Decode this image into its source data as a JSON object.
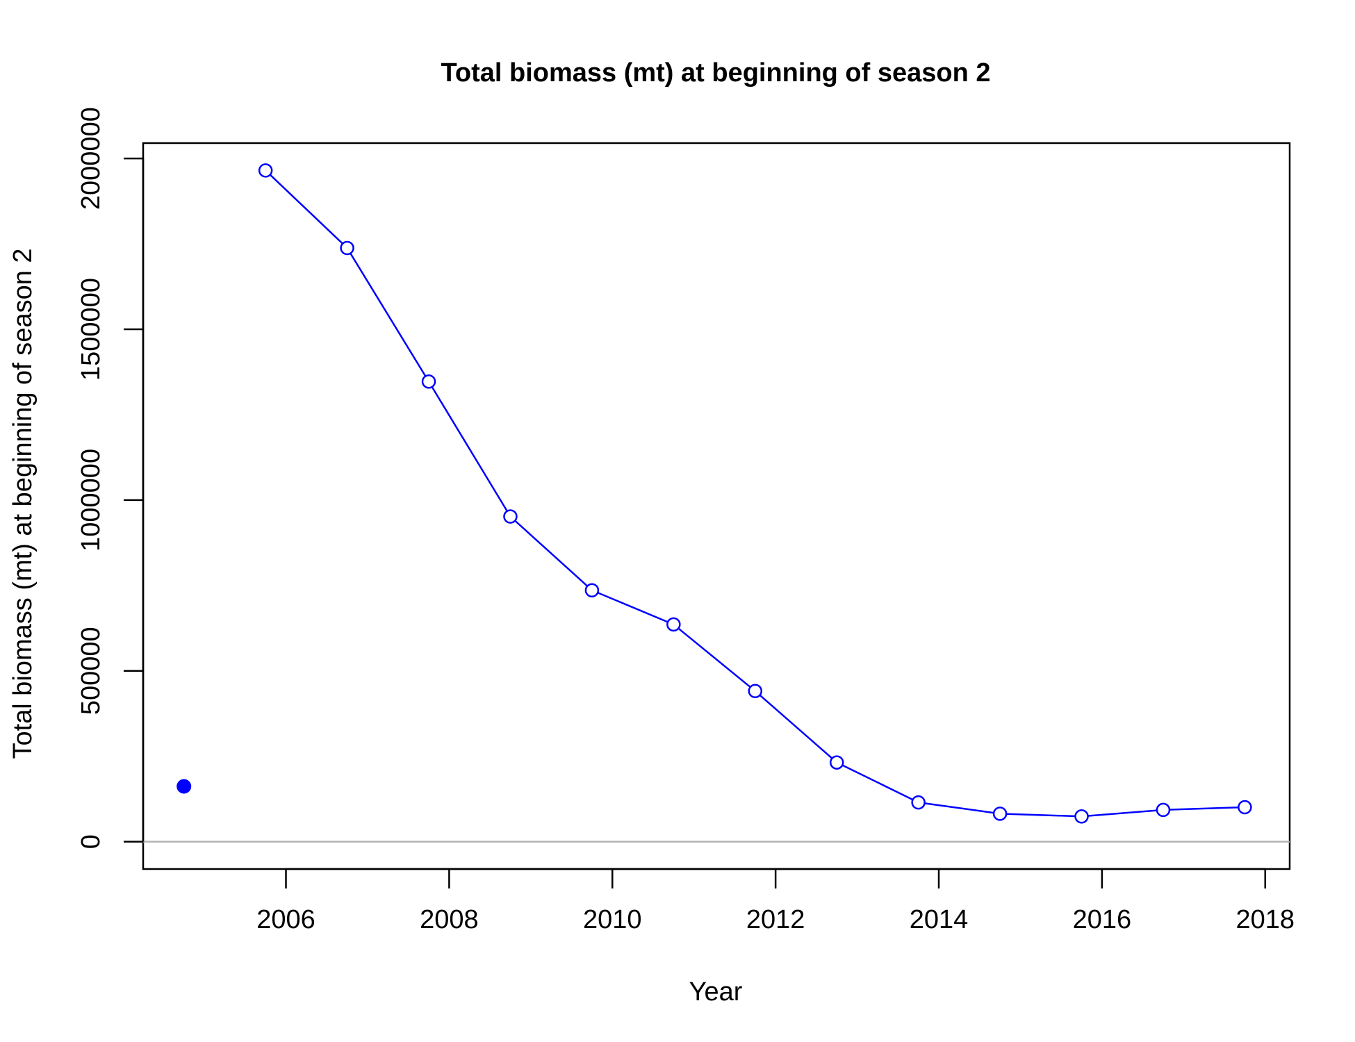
{
  "chart_data": {
    "type": "line",
    "title": "Total biomass (mt) at beginning of season 2",
    "xlabel": "Year",
    "ylabel": "Total biomass (mt) at beginning of season 2",
    "xlim": [
      2004.25,
      2018.3
    ],
    "ylim": [
      -80000,
      2045000
    ],
    "x_ticks": [
      2006,
      2008,
      2010,
      2012,
      2014,
      2016,
      2018
    ],
    "y_ticks": [
      0,
      500000,
      1000000,
      1500000,
      2000000
    ],
    "x_tick_labels": [
      "2006",
      "2008",
      "2010",
      "2012",
      "2014",
      "2016",
      "2018"
    ],
    "y_tick_labels": [
      "0",
      "500000",
      "1000000",
      "1500000",
      "2000000"
    ],
    "grid": false,
    "reference_line": {
      "y": 0,
      "color": "#b3b3b3"
    },
    "series": [
      {
        "style": "line-open-circles",
        "color": "#0000ff",
        "x": [
          2005.75,
          2006.75,
          2007.75,
          2008.75,
          2009.75,
          2010.75,
          2011.75,
          2012.75,
          2013.75,
          2014.75,
          2015.75,
          2016.75,
          2017.75
        ],
        "y": [
          1965000,
          1738000,
          1347000,
          952000,
          736000,
          636000,
          441000,
          232000,
          115000,
          82000,
          74000,
          93000,
          101000
        ]
      },
      {
        "style": "point-filled",
        "color": "#0000ff",
        "x": [
          2004.75
        ],
        "y": [
          162000
        ]
      }
    ]
  }
}
